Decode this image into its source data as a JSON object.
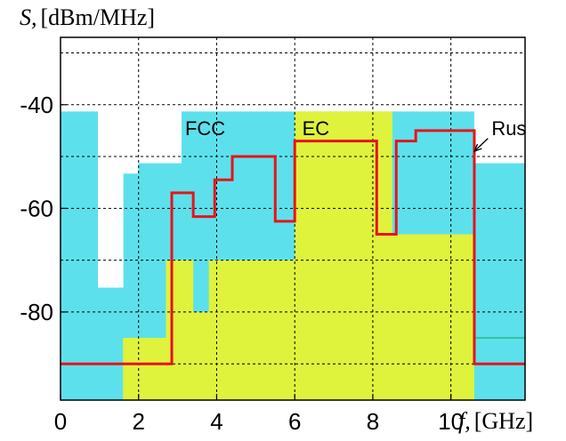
{
  "chart_data": {
    "type": "line",
    "ylabel_symbol": "S,",
    "ylabel_unit": "[dBm/MHz]",
    "xlabel_symbol": "f,",
    "xlabel_unit": "[GHz]",
    "xlim": [
      0,
      11.9
    ],
    "ylim": [
      -97,
      -27
    ],
    "xticks": [
      0,
      2,
      4,
      6,
      8,
      10
    ],
    "yticks": [
      -40,
      -60,
      -80
    ],
    "xgrid": [
      2,
      4,
      6,
      8,
      10
    ],
    "ygrid": [
      -30,
      -40,
      -50,
      -60,
      -70,
      -80,
      -90
    ],
    "grid": true,
    "regions": [
      {
        "label": "FCC",
        "color": "#5ce1ec",
        "upper": [
          [
            0,
            -41.3
          ],
          [
            0.96,
            -41.3
          ],
          [
            0.96,
            -75.3
          ],
          [
            1.61,
            -75.3
          ],
          [
            1.61,
            -53.3
          ],
          [
            1.99,
            -53.3
          ],
          [
            1.99,
            -51.3
          ],
          [
            3.1,
            -51.3
          ],
          [
            3.1,
            -41.3
          ],
          [
            10.6,
            -41.3
          ],
          [
            10.6,
            -51.3
          ],
          [
            11.9,
            -51.3
          ]
        ]
      },
      {
        "label": "EC",
        "color": "#dff23c",
        "upper": [
          [
            0,
            -97
          ],
          [
            1.6,
            -97
          ],
          [
            1.6,
            -85
          ],
          [
            2.7,
            -85
          ],
          [
            2.7,
            -70
          ],
          [
            3.4,
            -70
          ],
          [
            3.4,
            -80
          ],
          [
            3.8,
            -80
          ],
          [
            3.8,
            -70
          ],
          [
            6.0,
            -70
          ],
          [
            6.0,
            -41.3
          ],
          [
            8.5,
            -41.3
          ],
          [
            8.5,
            -65
          ],
          [
            10.6,
            -65
          ],
          [
            10.6,
            -97
          ],
          [
            11.9,
            -97
          ]
        ]
      }
    ],
    "series": [
      {
        "name": "Rus",
        "color": "#e8121c",
        "x": [
          0,
          2.85,
          2.85,
          3.4,
          3.4,
          3.95,
          3.95,
          4.4,
          4.4,
          5.5,
          5.5,
          6.0,
          6.0,
          8.1,
          8.1,
          8.6,
          8.6,
          9.1,
          9.1,
          10.6,
          10.6,
          11.9
        ],
        "y": [
          -90,
          -90,
          -57,
          -57,
          -61.6,
          -61.6,
          -54.5,
          -54.5,
          -50,
          -50,
          -62.5,
          -62.5,
          -47,
          -47,
          -65,
          -65,
          -47,
          -47,
          -45,
          -45,
          -90,
          -90
        ]
      }
    ],
    "extra_line": {
      "color": "#1a9a5a",
      "x": [
        10.6,
        11.9
      ],
      "y": [
        -85,
        -85
      ]
    },
    "annotations": [
      {
        "text": "FCC",
        "x": 3.1,
        "y": -44.5
      },
      {
        "text": "EC",
        "x": 6.1,
        "y": -44.5
      },
      {
        "text": "Rus",
        "x": 10.95,
        "y": -44.5
      }
    ],
    "arrow": {
      "from": [
        10.95,
        -46.5
      ],
      "to": [
        10.6,
        -49
      ]
    }
  }
}
